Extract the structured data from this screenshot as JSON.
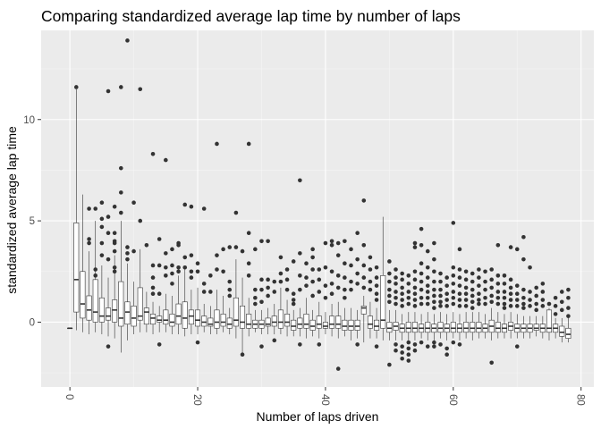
{
  "chart_data": {
    "type": "boxplot",
    "title": "Comparing standardized average lap time by number of laps",
    "xlabel": "Number of laps driven",
    "ylabel": "standardized average lap time",
    "xlim": [
      -4.5,
      82
    ],
    "ylim": [
      -3.2,
      14.4
    ],
    "x_ticks": [
      0,
      20,
      40,
      60,
      80
    ],
    "x_tick_labels": [
      "0",
      "20",
      "40",
      "60",
      "80"
    ],
    "x_tick_label_rotation": 90,
    "y_ticks": [
      0,
      5,
      10
    ],
    "y_tick_labels": [
      "0",
      "5",
      "10"
    ],
    "grid": true,
    "legend": "none",
    "colors": {
      "panel": "#ebebeb",
      "grid_major": "#ffffff",
      "grid_minor": "#f5f5f5",
      "box_fill": "#ffffff",
      "box_line": "#333333",
      "outlier": "#333333"
    },
    "boxes": [
      {
        "x": 0,
        "min": -0.3,
        "q1": -0.3,
        "median": -0.3,
        "q3": -0.3,
        "max": -0.3,
        "outliers": []
      },
      {
        "x": 1,
        "min": -0.4,
        "q1": 0.5,
        "median": 2.1,
        "q3": 4.9,
        "max": 11.5,
        "outliers": [
          11.6
        ]
      },
      {
        "x": 2,
        "min": -0.5,
        "q1": 0.2,
        "median": 0.9,
        "q3": 2.5,
        "max": 6.3,
        "outliers": []
      },
      {
        "x": 3,
        "min": -0.6,
        "q1": 0.1,
        "median": 0.6,
        "q3": 1.3,
        "max": 3.5,
        "outliers": [
          4.1,
          5.6,
          3.9
        ]
      },
      {
        "x": 4,
        "min": -0.5,
        "q1": 0.0,
        "median": 0.5,
        "q3": 2.1,
        "max": 5.0,
        "outliers": [
          5.6,
          2.6,
          2.3
        ]
      },
      {
        "x": 5,
        "min": -0.6,
        "q1": 0.0,
        "median": 0.3,
        "q3": 1.2,
        "max": 2.8,
        "outliers": [
          5.9,
          4.7,
          5.1,
          3.9,
          3.3
        ]
      },
      {
        "x": 6,
        "min": -0.7,
        "q1": 0.1,
        "median": 0.3,
        "q3": 0.7,
        "max": 2.2,
        "outliers": [
          11.4,
          5.2,
          4.4,
          3.1,
          -1.2
        ]
      },
      {
        "x": 7,
        "min": -0.8,
        "q1": 0.0,
        "median": 0.6,
        "q3": 1.1,
        "max": 3.3,
        "outliers": [
          5.7,
          4.4,
          3.9,
          3.5,
          2.7,
          2.5,
          4.0
        ]
      },
      {
        "x": 8,
        "min": -1.5,
        "q1": -0.2,
        "median": 0.2,
        "q3": 2.0,
        "max": 5.0,
        "outliers": [
          11.6,
          7.6,
          6.4,
          5.4
        ]
      },
      {
        "x": 9,
        "min": -0.9,
        "q1": -0.1,
        "median": 0.5,
        "q3": 1.0,
        "max": 2.9,
        "outliers": [
          13.9,
          3.4,
          3.1,
          3.7
        ]
      },
      {
        "x": 10,
        "min": -0.6,
        "q1": -0.2,
        "median": 0.2,
        "q3": 0.8,
        "max": 2.0,
        "outliers": [
          5.9,
          3.5
        ]
      },
      {
        "x": 11,
        "min": -0.5,
        "q1": 0.1,
        "median": 0.3,
        "q3": 1.7,
        "max": 3.6,
        "outliers": [
          11.5,
          5.0
        ]
      },
      {
        "x": 12,
        "min": -0.5,
        "q1": -0.1,
        "median": 0.5,
        "q3": 0.7,
        "max": 1.5,
        "outliers": [
          3.8
        ]
      },
      {
        "x": 13,
        "min": -0.6,
        "q1": -0.1,
        "median": 0.2,
        "q3": 0.4,
        "max": 1.0,
        "outliers": [
          8.3,
          2.8,
          2.2,
          1.7,
          1.4
        ]
      },
      {
        "x": 14,
        "min": -0.5,
        "q1": 0.0,
        "median": 0.1,
        "q3": 0.3,
        "max": 0.8,
        "outliers": [
          2.8,
          4.1,
          1.4,
          -1.1
        ]
      },
      {
        "x": 15,
        "min": -0.5,
        "q1": -0.1,
        "median": 0.1,
        "q3": 0.6,
        "max": 1.4,
        "outliers": [
          8.0,
          2.7,
          2.3,
          3.4
        ]
      },
      {
        "x": 16,
        "min": -0.6,
        "q1": -0.2,
        "median": 0.0,
        "q3": 0.4,
        "max": 1.3,
        "outliers": [
          3.6,
          2.8,
          2.4,
          1.9
        ]
      },
      {
        "x": 17,
        "min": -0.6,
        "q1": -0.1,
        "median": 0.3,
        "q3": 0.9,
        "max": 2.3,
        "outliers": [
          3.9,
          3.8,
          2.7,
          2.5
        ]
      },
      {
        "x": 18,
        "min": -0.7,
        "q1": -0.3,
        "median": 0.2,
        "q3": 1.0,
        "max": 2.6,
        "outliers": [
          5.8,
          3.2,
          2.7
        ]
      },
      {
        "x": 19,
        "min": -0.6,
        "q1": -0.1,
        "median": 0.3,
        "q3": 0.6,
        "max": 1.6,
        "outliers": [
          5.7,
          3.3,
          2.5,
          2.2
        ]
      },
      {
        "x": 20,
        "min": -0.6,
        "q1": -0.2,
        "median": 0.1,
        "q3": 0.6,
        "max": 1.7,
        "outliers": [
          2.9,
          2.5,
          -1.0
        ]
      },
      {
        "x": 21,
        "min": -0.5,
        "q1": -0.2,
        "median": 0.0,
        "q3": 0.3,
        "max": 0.9,
        "outliers": [
          5.6,
          1.9,
          1.5
        ]
      },
      {
        "x": 22,
        "min": -0.6,
        "q1": -0.2,
        "median": -0.1,
        "q3": 0.2,
        "max": 0.8,
        "outliers": [
          2.3,
          1.5
        ]
      },
      {
        "x": 23,
        "min": -0.6,
        "q1": -0.3,
        "median": 0.0,
        "q3": 0.6,
        "max": 1.6,
        "outliers": [
          8.8,
          3.3,
          2.6
        ]
      },
      {
        "x": 24,
        "min": -0.5,
        "q1": -0.2,
        "median": 0.0,
        "q3": 0.4,
        "max": 1.3,
        "outliers": [
          3.6,
          2.5
        ]
      },
      {
        "x": 25,
        "min": -0.6,
        "q1": -0.3,
        "median": -0.1,
        "q3": 0.2,
        "max": 0.7,
        "outliers": [
          3.7,
          2.0,
          1.6,
          1.3
        ]
      },
      {
        "x": 26,
        "min": -0.8,
        "q1": -0.2,
        "median": 0.1,
        "q3": 1.2,
        "max": 3.1,
        "outliers": [
          5.4,
          3.7
        ]
      },
      {
        "x": 27,
        "min": -1.6,
        "q1": -0.3,
        "median": 0.0,
        "q3": 0.8,
        "max": 2.2,
        "outliers": [
          3.5,
          -1.6
        ]
      },
      {
        "x": 28,
        "min": -0.7,
        "q1": -0.3,
        "median": -0.1,
        "q3": 0.4,
        "max": 1.2,
        "outliers": [
          8.8,
          4.4,
          2.9,
          2.3
        ]
      },
      {
        "x": 29,
        "min": -0.5,
        "q1": -0.3,
        "median": -0.1,
        "q3": 0.1,
        "max": 0.6,
        "outliers": [
          3.6,
          1.6,
          1.2,
          0.9
        ]
      },
      {
        "x": 30,
        "min": -0.6,
        "q1": -0.3,
        "median": -0.1,
        "q3": 0.1,
        "max": 0.6,
        "outliers": [
          4.0,
          2.1,
          1.6,
          1.0,
          -1.2
        ]
      },
      {
        "x": 31,
        "min": -0.6,
        "q1": -0.2,
        "median": -0.1,
        "q3": 0.2,
        "max": 0.7,
        "outliers": [
          4.0,
          2.1,
          1.7,
          1.3
        ]
      },
      {
        "x": 32,
        "min": -0.6,
        "q1": -0.2,
        "median": 0.0,
        "q3": 0.3,
        "max": 0.9,
        "outliers": [
          2.0,
          1.5,
          -0.9
        ]
      },
      {
        "x": 33,
        "min": -0.6,
        "q1": -0.3,
        "median": 0.0,
        "q3": 0.6,
        "max": 1.7,
        "outliers": [
          3.2,
          2.4,
          2.0
        ]
      },
      {
        "x": 34,
        "min": -0.7,
        "q1": -0.2,
        "median": 0.0,
        "q3": 0.4,
        "max": 1.1,
        "outliers": [
          2.6,
          2.1,
          1.6
        ]
      },
      {
        "x": 35,
        "min": -0.7,
        "q1": -0.4,
        "median": -0.2,
        "q3": 0.1,
        "max": 0.6,
        "outliers": [
          3.0,
          1.4,
          1.1,
          0.9
        ]
      },
      {
        "x": 36,
        "min": -0.7,
        "q1": -0.3,
        "median": -0.1,
        "q3": 0.2,
        "max": 0.7,
        "outliers": [
          7.0,
          3.4,
          2.3,
          1.6,
          -1.1
        ]
      },
      {
        "x": 37,
        "min": -0.8,
        "q1": -0.3,
        "median": -0.1,
        "q3": 0.4,
        "max": 1.2,
        "outliers": [
          2.9,
          2.2,
          1.8
        ]
      },
      {
        "x": 38,
        "min": -0.7,
        "q1": -0.4,
        "median": -0.2,
        "q3": 0.1,
        "max": 0.6,
        "outliers": [
          3.6,
          3.2,
          2.6,
          2.0,
          1.3
        ]
      },
      {
        "x": 39,
        "min": -0.8,
        "q1": -0.3,
        "median": -0.1,
        "q3": 0.3,
        "max": 1.0,
        "outliers": [
          2.6,
          2.1,
          1.5,
          -1.1
        ]
      },
      {
        "x": 40,
        "min": -0.6,
        "q1": -0.3,
        "median": -0.2,
        "q3": 0.0,
        "max": 0.5,
        "outliers": [
          3.9,
          2.7,
          1.8,
          1.2
        ]
      },
      {
        "x": 41,
        "min": -0.7,
        "q1": -0.3,
        "median": -0.1,
        "q3": 0.3,
        "max": 0.9,
        "outliers": [
          4.0,
          3.8,
          2.5,
          1.9,
          1.4
        ]
      },
      {
        "x": 42,
        "min": -0.8,
        "q1": -0.3,
        "median": -0.1,
        "q3": 0.3,
        "max": 1.0,
        "outliers": [
          3.9,
          3.3,
          2.3,
          1.7,
          -2.3
        ]
      },
      {
        "x": 43,
        "min": -0.7,
        "q1": -0.4,
        "median": -0.2,
        "q3": 0.1,
        "max": 0.7,
        "outliers": [
          4.0,
          2.9,
          2.2,
          1.6,
          1.2
        ]
      },
      {
        "x": 44,
        "min": -0.9,
        "q1": -0.4,
        "median": -0.2,
        "q3": 0.1,
        "max": 0.7,
        "outliers": [
          3.6,
          2.8,
          2.0,
          1.6
        ]
      },
      {
        "x": 45,
        "min": -0.8,
        "q1": -0.4,
        "median": -0.2,
        "q3": 0.1,
        "max": 0.6,
        "outliers": [
          4.4,
          3.1,
          2.4,
          1.9,
          -1.1
        ]
      },
      {
        "x": 46,
        "min": -1.0,
        "q1": 0.4,
        "median": 0.7,
        "q3": 0.8,
        "max": 1.3,
        "outliers": [
          6.0,
          3.8,
          2.8,
          2.2,
          1.7
        ]
      },
      {
        "x": 47,
        "min": -0.8,
        "q1": -0.3,
        "median": -0.1,
        "q3": 0.3,
        "max": 1.0,
        "outliers": [
          3.2,
          2.6,
          2.0,
          1.6
        ]
      },
      {
        "x": 48,
        "min": -0.8,
        "q1": -0.4,
        "median": -0.2,
        "q3": 0.1,
        "max": 0.7,
        "outliers": [
          2.7,
          2.2,
          1.8,
          1.4,
          1.1,
          -1.2
        ]
      },
      {
        "x": 49,
        "min": -0.9,
        "q1": -0.3,
        "median": 0.1,
        "q3": 2.3,
        "max": 5.2,
        "outliers": []
      },
      {
        "x": 50,
        "min": -0.9,
        "q1": -0.5,
        "median": -0.3,
        "q3": 0.0,
        "max": 0.6,
        "outliers": [
          3.0,
          2.4,
          2.0,
          1.6,
          1.3,
          1.0,
          -2.1
        ]
      },
      {
        "x": 51,
        "min": -0.9,
        "q1": -0.4,
        "median": -0.2,
        "q3": 0.0,
        "max": 0.6,
        "outliers": [
          2.6,
          2.2,
          1.9,
          1.5,
          1.2,
          0.9,
          -1.1,
          -1.4
        ]
      },
      {
        "x": 52,
        "min": -0.9,
        "q1": -0.5,
        "median": -0.3,
        "q3": -0.1,
        "max": 0.4,
        "outliers": [
          2.4,
          2.1,
          1.7,
          1.4,
          1.1,
          0.8,
          -1.2,
          -1.5,
          -1.8
        ]
      },
      {
        "x": 53,
        "min": -0.9,
        "q1": -0.5,
        "median": -0.3,
        "q3": 0.0,
        "max": 0.5,
        "outliers": [
          2.3,
          1.9,
          1.5,
          1.2,
          0.9,
          -1.0,
          -1.3,
          -1.6,
          -1.9
        ]
      },
      {
        "x": 54,
        "min": -0.9,
        "q1": -0.5,
        "median": -0.3,
        "q3": 0.0,
        "max": 0.5,
        "outliers": [
          3.9,
          3.7,
          2.5,
          2.1,
          1.7,
          1.4,
          1.1,
          0.8,
          -1.1,
          -1.4
        ]
      },
      {
        "x": 55,
        "min": -0.8,
        "q1": -0.5,
        "median": -0.3,
        "q3": -0.1,
        "max": 0.4,
        "outliers": [
          4.6,
          3.8,
          2.9,
          2.4,
          2.0,
          1.6,
          1.2,
          0.9,
          -1.0
        ]
      },
      {
        "x": 56,
        "min": -0.9,
        "q1": -0.5,
        "median": -0.3,
        "q3": 0.0,
        "max": 0.5,
        "outliers": [
          3.5,
          2.7,
          2.2,
          1.8,
          1.5,
          1.2,
          0.9,
          -1.2
        ]
      },
      {
        "x": 57,
        "min": -0.9,
        "q1": -0.5,
        "median": -0.3,
        "q3": -0.1,
        "max": 0.4,
        "outliers": [
          3.9,
          3.1,
          2.5,
          2.0,
          1.6,
          1.3,
          1.0,
          0.7,
          -1.0,
          -1.2
        ]
      },
      {
        "x": 58,
        "min": -0.8,
        "q1": -0.5,
        "median": -0.3,
        "q3": 0.0,
        "max": 0.5,
        "outliers": [
          2.4,
          2.0,
          1.6,
          1.3,
          1.0,
          0.8,
          -1.1
        ]
      },
      {
        "x": 59,
        "min": -0.9,
        "q1": -0.5,
        "median": -0.3,
        "q3": -0.1,
        "max": 0.4,
        "outliers": [
          2.2,
          1.8,
          1.4,
          1.1,
          0.8,
          -1.3,
          -1.6
        ]
      },
      {
        "x": 60,
        "min": -0.8,
        "q1": -0.5,
        "median": -0.3,
        "q3": 0.0,
        "max": 0.5,
        "outliers": [
          4.9,
          2.7,
          2.3,
          1.9,
          1.5,
          1.2,
          0.9,
          -1.0
        ]
      },
      {
        "x": 61,
        "min": -0.9,
        "q1": -0.5,
        "median": -0.3,
        "q3": -0.1,
        "max": 0.4,
        "outliers": [
          3.6,
          2.6,
          2.2,
          1.8,
          1.4,
          1.1,
          0.8,
          -1.1
        ]
      },
      {
        "x": 62,
        "min": -0.8,
        "q1": -0.5,
        "median": -0.3,
        "q3": 0.0,
        "max": 0.5,
        "outliers": [
          2.5,
          2.1,
          1.7,
          1.4,
          1.1,
          0.8
        ]
      },
      {
        "x": 63,
        "min": -0.9,
        "q1": -0.5,
        "median": -0.3,
        "q3": 0.0,
        "max": 0.5,
        "outliers": [
          2.4,
          2.0,
          1.6,
          1.3,
          1.0,
          0.7
        ]
      },
      {
        "x": 64,
        "min": -0.8,
        "q1": -0.5,
        "median": -0.3,
        "q3": 0.0,
        "max": 0.5,
        "outliers": [
          2.6,
          2.2,
          1.8,
          1.4,
          1.1,
          0.9
        ]
      },
      {
        "x": 65,
        "min": -0.8,
        "q1": -0.5,
        "median": -0.3,
        "q3": -0.1,
        "max": 0.4,
        "outliers": [
          2.5,
          2.0,
          1.6,
          1.2,
          0.9
        ]
      },
      {
        "x": 66,
        "min": -0.9,
        "q1": -0.5,
        "median": -0.2,
        "q3": 0.1,
        "max": 0.7,
        "outliers": [
          2.6,
          2.1,
          1.7,
          1.3,
          1.0,
          -2.0
        ]
      },
      {
        "x": 67,
        "min": -0.8,
        "q1": -0.5,
        "median": -0.3,
        "q3": 0.0,
        "max": 0.5,
        "outliers": [
          3.8,
          2.3,
          1.9,
          1.5,
          1.2,
          0.9
        ]
      },
      {
        "x": 68,
        "min": -0.8,
        "q1": -0.5,
        "median": -0.3,
        "q3": -0.1,
        "max": 0.4,
        "outliers": [
          2.3,
          1.9,
          1.5,
          1.2,
          0.9,
          0.7
        ]
      },
      {
        "x": 69,
        "min": -0.8,
        "q1": -0.4,
        "median": -0.2,
        "q3": 0.0,
        "max": 0.5,
        "outliers": [
          3.7,
          2.1,
          1.7,
          1.4,
          1.1,
          0.8
        ]
      },
      {
        "x": 70,
        "min": -0.8,
        "q1": -0.5,
        "median": -0.3,
        "q3": -0.1,
        "max": 0.4,
        "outliers": [
          3.6,
          1.8,
          1.4,
          1.1,
          0.8,
          -1.2
        ]
      },
      {
        "x": 71,
        "min": -0.8,
        "q1": -0.5,
        "median": -0.3,
        "q3": -0.1,
        "max": 0.3,
        "outliers": [
          4.2,
          3.1,
          1.6,
          1.2,
          0.9,
          0.7
        ]
      },
      {
        "x": 72,
        "min": -0.8,
        "q1": -0.5,
        "median": -0.3,
        "q3": -0.1,
        "max": 0.3,
        "outliers": [
          2.7,
          1.5,
          1.1,
          0.8
        ]
      },
      {
        "x": 73,
        "min": -0.7,
        "q1": -0.4,
        "median": -0.3,
        "q3": -0.1,
        "max": 0.3,
        "outliers": [
          1.7,
          1.3,
          0.9,
          0.6
        ]
      },
      {
        "x": 74,
        "min": -0.8,
        "q1": -0.5,
        "median": -0.3,
        "q3": -0.1,
        "max": 0.3,
        "outliers": [
          1.9,
          1.5,
          1.1,
          0.8
        ]
      },
      {
        "x": 75,
        "min": -0.9,
        "q1": -0.5,
        "median": -0.3,
        "q3": 0.6,
        "max": 0.7,
        "outliers": [
          0.9
        ]
      },
      {
        "x": 76,
        "min": -0.8,
        "q1": -0.5,
        "median": -0.3,
        "q3": -0.1,
        "max": 0.2,
        "outliers": [
          1.2,
          0.8,
          0.4
        ]
      },
      {
        "x": 77,
        "min": -1.0,
        "q1": -0.7,
        "median": -0.5,
        "q3": -0.2,
        "max": 0.2,
        "outliers": [
          1.5,
          1.0,
          0.6
        ]
      },
      {
        "x": 78,
        "min": -1.0,
        "q1": -0.8,
        "median": -0.6,
        "q3": -0.3,
        "max": 0.2,
        "outliers": [
          1.6,
          1.2,
          0.7,
          0.3
        ]
      }
    ]
  }
}
